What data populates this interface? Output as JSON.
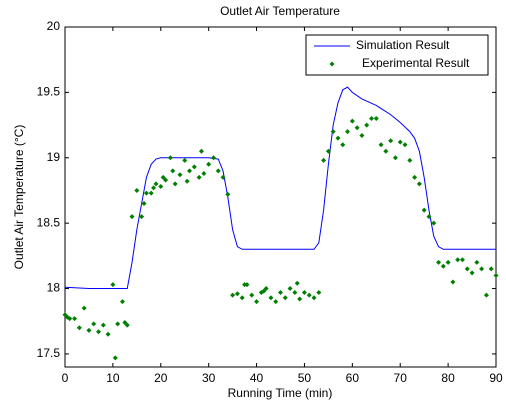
{
  "chart_data": {
    "type": "line",
    "title": "Outlet Air Temperature",
    "x_label": "Running Time (min)",
    "y_label": "Outlet Air Temperature (°C)",
    "xlim": [
      0,
      90
    ],
    "xticks": [
      0,
      10,
      20,
      30,
      40,
      50,
      60,
      70,
      80,
      90
    ],
    "ylim": [
      17.4,
      20
    ],
    "yticks": [
      17.5,
      18,
      18.5,
      19,
      19.5,
      20
    ],
    "legend": "northeast",
    "series": [
      {
        "name": "Simulation Result",
        "color": "#0000ff",
        "kind": "line",
        "x": [
          0,
          5,
          10,
          13,
          14,
          15,
          16,
          17,
          18,
          19,
          20,
          25,
          30,
          32,
          33,
          34,
          35,
          36,
          37,
          45,
          52,
          53,
          54,
          55,
          56,
          57,
          58,
          59,
          60,
          62,
          65,
          68,
          70,
          72,
          73,
          74,
          75,
          76,
          77,
          78,
          79,
          85,
          90
        ],
        "values": [
          18.01,
          18.0,
          18.0,
          18.0,
          18.2,
          18.45,
          18.65,
          18.85,
          18.95,
          18.99,
          19.0,
          19.0,
          19.0,
          18.99,
          18.9,
          18.7,
          18.45,
          18.32,
          18.3,
          18.3,
          18.3,
          18.35,
          18.6,
          18.95,
          19.25,
          19.42,
          19.52,
          19.54,
          19.5,
          19.45,
          19.4,
          19.33,
          19.27,
          19.2,
          19.15,
          19.05,
          18.85,
          18.6,
          18.4,
          18.32,
          18.3,
          18.3,
          18.3
        ]
      },
      {
        "name": "Experimental Result",
        "color": "#008000",
        "kind": "scatter",
        "x": [
          0,
          0.5,
          1,
          2,
          3,
          4,
          5,
          6,
          7,
          8,
          9,
          10,
          10.5,
          11,
          12,
          12.5,
          13,
          14,
          15,
          16,
          16.5,
          17,
          18,
          18.5,
          19,
          20,
          20.5,
          21,
          22,
          22.5,
          23,
          24,
          25,
          25.5,
          26,
          27,
          28,
          28.5,
          29,
          30,
          31,
          32,
          33,
          34,
          35,
          36,
          37,
          37.5,
          38,
          39,
          40,
          41,
          41.5,
          42,
          43,
          44,
          45,
          46,
          47,
          48,
          48.5,
          49,
          50,
          51,
          52,
          53,
          54,
          55,
          56,
          57,
          58,
          59,
          60,
          61,
          62,
          63,
          64,
          65,
          66,
          67,
          68,
          69,
          70,
          71,
          72,
          73,
          74,
          75,
          76,
          77,
          78,
          79,
          80,
          81,
          82,
          83,
          84,
          85,
          86,
          87,
          88,
          89,
          90
        ],
        "values": [
          17.8,
          17.78,
          17.77,
          17.77,
          17.7,
          17.85,
          17.68,
          17.73,
          17.67,
          17.72,
          17.65,
          18.03,
          17.47,
          17.73,
          17.9,
          17.74,
          17.72,
          18.55,
          18.75,
          18.55,
          18.65,
          18.73,
          18.73,
          18.77,
          18.8,
          18.78,
          18.85,
          18.83,
          19.0,
          18.9,
          18.8,
          18.87,
          18.98,
          18.82,
          18.9,
          18.93,
          18.85,
          19.05,
          18.88,
          18.95,
          19.0,
          18.9,
          18.85,
          18.72,
          17.95,
          17.96,
          17.93,
          18.03,
          18.03,
          17.95,
          17.9,
          17.97,
          17.98,
          18.0,
          17.93,
          17.9,
          17.97,
          17.93,
          18.0,
          17.97,
          18.04,
          17.92,
          17.97,
          17.95,
          17.93,
          17.97,
          18.98,
          19.05,
          19.2,
          19.15,
          19.1,
          19.2,
          19.28,
          19.23,
          19.17,
          19.25,
          19.3,
          19.3,
          19.1,
          19.05,
          19.13,
          19.0,
          19.12,
          19.1,
          18.98,
          18.85,
          18.8,
          18.6,
          18.55,
          18.5,
          18.2,
          18.17,
          18.2,
          18.05,
          18.22,
          18.22,
          18.15,
          18.12,
          18.2,
          18.15,
          17.95,
          18.15,
          18.1
        ]
      }
    ]
  }
}
